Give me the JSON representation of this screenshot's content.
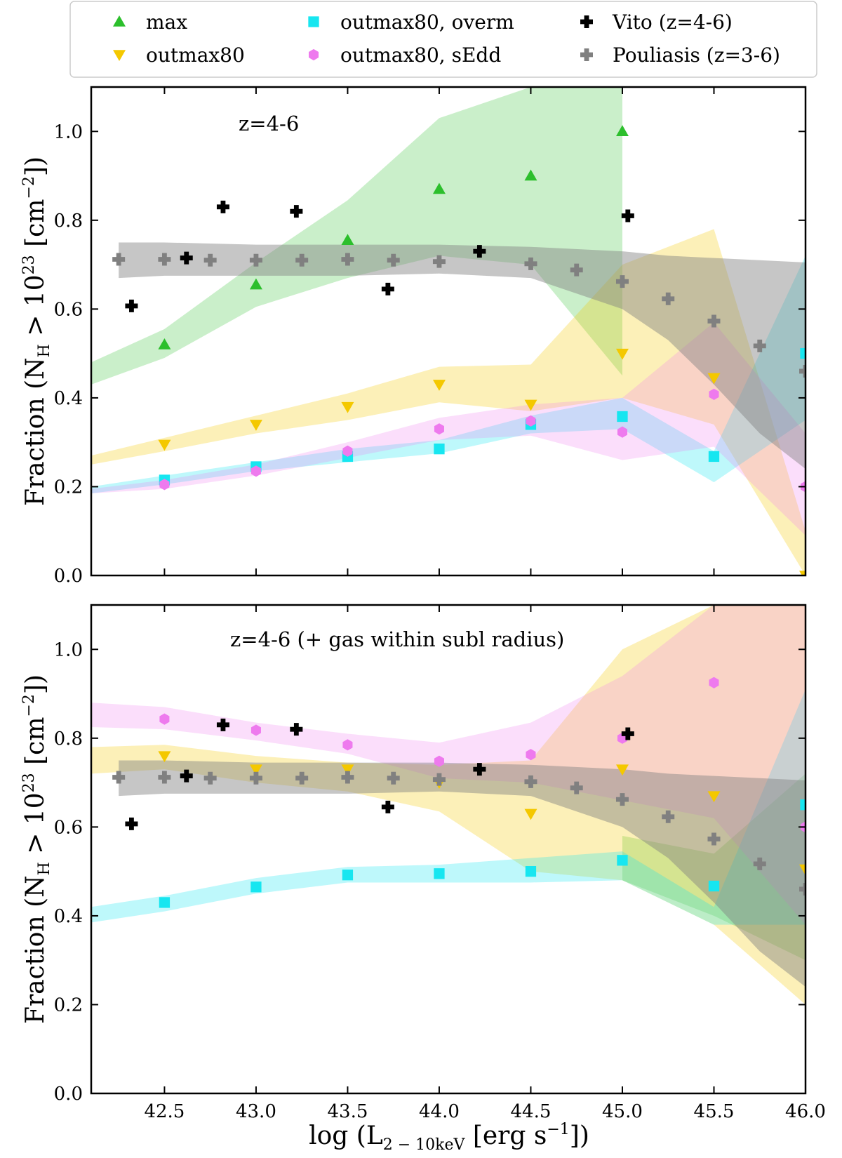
{
  "figure": {
    "xlabel": "log (L",
    "xlabel_sub": "2 − 10keV",
    "xlabel_units": " [erg s",
    "xlabel_sup": "−1",
    "xlabel_close": "])",
    "ylabel_prefix": "Fraction (N",
    "ylabel_sub": "H",
    "ylabel_mid": " > 10",
    "ylabel_sup": "23",
    "ylabel_units": " [cm",
    "ylabel_sup2": "−2",
    "ylabel_close": "])"
  },
  "legend": [
    {
      "key": "max",
      "label": "max",
      "marker": "triangle-up",
      "color": "#2cbf2c"
    },
    {
      "key": "outmax80",
      "label": "outmax80",
      "marker": "triangle-down",
      "color": "#f4c800"
    },
    {
      "key": "overm",
      "label": "outmax80, overm",
      "marker": "square",
      "color": "#17e6f0"
    },
    {
      "key": "sedd",
      "label": "outmax80, sEdd",
      "marker": "hexagon",
      "color": "#ee7aee"
    },
    {
      "key": "vito",
      "label": "Vito (z=4-6)",
      "marker": "plus",
      "color": "#000000"
    },
    {
      "key": "pouliasis",
      "label": "Pouliasis (z=3-6)",
      "marker": "plus",
      "color": "#808080"
    }
  ],
  "chart_data": [
    {
      "type": "scatter",
      "panel": "top",
      "annotation": "z=4-6",
      "xlim": [
        42.1,
        46.0
      ],
      "ylim": [
        0.0,
        1.1
      ],
      "xticks": [
        "42.5",
        "43.0",
        "43.5",
        "44.0",
        "44.5",
        "45.0",
        "45.5",
        "46.0"
      ],
      "yticks": [
        "0.0",
        "0.2",
        "0.4",
        "0.6",
        "0.8",
        "1.0"
      ],
      "bands": [
        {
          "series": "max",
          "color": "#2cbf2c",
          "opacity": 0.25,
          "x": [
            42.1,
            42.5,
            43.0,
            43.5,
            44.0,
            44.5,
            45.0
          ],
          "upper": [
            0.48,
            0.555,
            0.705,
            0.845,
            1.03,
            1.1,
            1.1
          ],
          "lower": [
            0.43,
            0.49,
            0.605,
            0.67,
            0.72,
            0.7,
            0.45
          ]
        },
        {
          "series": "outmax80",
          "color": "#f4c800",
          "opacity": 0.28,
          "x": [
            42.1,
            42.5,
            43.0,
            43.5,
            44.0,
            44.5,
            45.0,
            45.5,
            46.0
          ],
          "upper": [
            0.27,
            0.31,
            0.36,
            0.41,
            0.47,
            0.475,
            0.7,
            0.78,
            0.1
          ],
          "lower": [
            0.25,
            0.28,
            0.32,
            0.35,
            0.39,
            0.37,
            0.4,
            0.34,
            0.0
          ]
        },
        {
          "series": "overm",
          "color": "#17e6f0",
          "opacity": 0.28,
          "x": [
            42.1,
            42.5,
            43.0,
            43.5,
            44.0,
            44.5,
            45.0,
            45.5,
            46.0
          ],
          "upper": [
            0.2,
            0.225,
            0.255,
            0.285,
            0.305,
            0.36,
            0.4,
            0.28,
            0.72
          ],
          "lower": [
            0.185,
            0.205,
            0.235,
            0.255,
            0.275,
            0.32,
            0.33,
            0.21,
            0.35
          ]
        },
        {
          "series": "sedd",
          "color": "#ee7aee",
          "opacity": 0.25,
          "x": [
            42.1,
            42.5,
            43.0,
            43.5,
            44.0,
            44.5,
            45.0,
            45.5,
            46.0
          ],
          "upper": [
            0.195,
            0.215,
            0.25,
            0.3,
            0.355,
            0.385,
            0.4,
            0.57,
            0.32
          ],
          "lower": [
            0.185,
            0.195,
            0.225,
            0.265,
            0.305,
            0.315,
            0.26,
            0.29,
            0.09
          ]
        },
        {
          "series": "pouliasis",
          "color": "#808080",
          "opacity": 0.45,
          "x": [
            42.25,
            42.5,
            43.0,
            43.5,
            44.0,
            44.5,
            45.0,
            45.25,
            45.5,
            45.75,
            46.0
          ],
          "upper": [
            0.75,
            0.75,
            0.745,
            0.745,
            0.745,
            0.74,
            0.73,
            0.72,
            0.715,
            0.71,
            0.705
          ],
          "lower": [
            0.67,
            0.675,
            0.675,
            0.675,
            0.68,
            0.67,
            0.6,
            0.53,
            0.43,
            0.32,
            0.24
          ]
        }
      ],
      "series": [
        {
          "key": "max",
          "x": [
            42.5,
            43.0,
            43.5,
            44.0,
            44.5,
            45.0
          ],
          "y": [
            0.52,
            0.655,
            0.755,
            0.87,
            0.9,
            1.0
          ]
        },
        {
          "key": "outmax80",
          "x": [
            42.5,
            43.0,
            43.5,
            44.0,
            44.5,
            45.0,
            45.5,
            46.0
          ],
          "y": [
            0.295,
            0.34,
            0.38,
            0.43,
            0.385,
            0.5,
            0.445,
            0.0
          ]
        },
        {
          "key": "overm",
          "x": [
            42.5,
            43.0,
            43.5,
            44.0,
            44.5,
            45.0,
            45.5,
            46.0
          ],
          "y": [
            0.215,
            0.245,
            0.268,
            0.285,
            0.34,
            0.358,
            0.268,
            0.5
          ]
        },
        {
          "key": "sedd",
          "x": [
            42.5,
            43.0,
            43.5,
            44.0,
            44.5,
            45.0,
            45.5,
            46.0
          ],
          "y": [
            0.205,
            0.235,
            0.28,
            0.33,
            0.348,
            0.323,
            0.408,
            0.2
          ]
        },
        {
          "key": "vito",
          "x": [
            42.32,
            42.62,
            42.82,
            43.22,
            43.72,
            44.22,
            45.03
          ],
          "y": [
            0.607,
            0.715,
            0.83,
            0.82,
            0.645,
            0.73,
            0.81
          ]
        },
        {
          "key": "pouliasis",
          "x": [
            42.25,
            42.5,
            42.75,
            43.0,
            43.25,
            43.5,
            43.75,
            44.0,
            44.5,
            44.75,
            45.0,
            45.25,
            45.5,
            45.75,
            46.0
          ],
          "y": [
            0.712,
            0.712,
            0.71,
            0.71,
            0.71,
            0.712,
            0.71,
            0.707,
            0.702,
            0.688,
            0.662,
            0.623,
            0.573,
            0.517,
            0.46
          ]
        }
      ]
    },
    {
      "type": "scatter",
      "panel": "bottom",
      "annotation": "z=4-6 (+ gas within subl radius)",
      "xlim": [
        42.1,
        46.0
      ],
      "ylim": [
        0.0,
        1.1
      ],
      "xticks": [
        "42.5",
        "43.0",
        "43.5",
        "44.0",
        "44.5",
        "45.0",
        "45.5",
        "46.0"
      ],
      "yticks": [
        "0.0",
        "0.2",
        "0.4",
        "0.6",
        "0.8",
        "1.0"
      ],
      "bands": [
        {
          "series": "max",
          "color": "#2cbf2c",
          "opacity": 0.25,
          "x": [
            45.0,
            45.5,
            46.0
          ],
          "upper": [
            0.58,
            0.54,
            0.72
          ],
          "lower": [
            0.48,
            0.4,
            0.3
          ]
        },
        {
          "series": "outmax80",
          "color": "#f4c800",
          "opacity": 0.28,
          "x": [
            42.1,
            42.5,
            43.0,
            43.5,
            44.0,
            44.5,
            45.0,
            45.5,
            46.0
          ],
          "upper": [
            0.78,
            0.785,
            0.76,
            0.745,
            0.74,
            0.75,
            1.0,
            1.1,
            1.1
          ],
          "lower": [
            0.72,
            0.73,
            0.7,
            0.68,
            0.635,
            0.5,
            0.48,
            0.38,
            0.2
          ]
        },
        {
          "series": "overm",
          "color": "#17e6f0",
          "opacity": 0.28,
          "x": [
            42.1,
            42.5,
            43.0,
            43.5,
            44.0,
            44.5,
            45.0,
            45.5,
            46.0
          ],
          "upper": [
            0.42,
            0.445,
            0.485,
            0.51,
            0.515,
            0.53,
            0.545,
            0.42,
            0.91
          ],
          "lower": [
            0.385,
            0.41,
            0.45,
            0.475,
            0.475,
            0.475,
            0.48,
            0.38,
            0.38
          ]
        },
        {
          "series": "sedd",
          "color": "#ee7aee",
          "opacity": 0.25,
          "x": [
            42.1,
            42.5,
            43.0,
            43.5,
            44.0,
            44.5,
            45.0,
            45.5,
            46.0
          ],
          "upper": [
            0.88,
            0.87,
            0.835,
            0.81,
            0.79,
            0.835,
            0.94,
            1.1,
            1.1
          ],
          "lower": [
            0.825,
            0.82,
            0.795,
            0.765,
            0.71,
            0.7,
            0.66,
            0.62,
            0.38
          ]
        },
        {
          "series": "pouliasis",
          "color": "#808080",
          "opacity": 0.45,
          "x": [
            42.25,
            42.5,
            43.0,
            43.5,
            44.0,
            44.5,
            45.0,
            45.25,
            45.5,
            45.75,
            46.0
          ],
          "upper": [
            0.75,
            0.75,
            0.745,
            0.745,
            0.745,
            0.74,
            0.73,
            0.72,
            0.715,
            0.71,
            0.705
          ],
          "lower": [
            0.67,
            0.675,
            0.675,
            0.675,
            0.68,
            0.67,
            0.6,
            0.53,
            0.43,
            0.32,
            0.24
          ]
        }
      ],
      "series": [
        {
          "key": "outmax80",
          "x": [
            42.5,
            43.0,
            43.5,
            44.0,
            44.5,
            45.0,
            45.5,
            46.0
          ],
          "y": [
            0.76,
            0.73,
            0.73,
            0.7,
            0.63,
            0.73,
            0.67,
            0.505
          ]
        },
        {
          "key": "overm",
          "x": [
            42.5,
            43.0,
            43.5,
            44.0,
            44.5,
            45.0,
            45.5,
            46.0
          ],
          "y": [
            0.43,
            0.465,
            0.492,
            0.495,
            0.5,
            0.525,
            0.467,
            0.65
          ]
        },
        {
          "key": "sedd",
          "x": [
            42.5,
            43.0,
            43.5,
            44.0,
            44.5,
            45.0,
            45.5,
            46.0
          ],
          "y": [
            0.843,
            0.818,
            0.785,
            0.748,
            0.763,
            0.8,
            0.925,
            0.6
          ]
        },
        {
          "key": "vito",
          "x": [
            42.32,
            42.62,
            42.82,
            43.22,
            43.72,
            44.22,
            45.03
          ],
          "y": [
            0.607,
            0.715,
            0.83,
            0.82,
            0.645,
            0.73,
            0.81
          ]
        },
        {
          "key": "pouliasis",
          "x": [
            42.25,
            42.5,
            42.75,
            43.0,
            43.25,
            43.5,
            43.75,
            44.0,
            44.5,
            44.75,
            45.0,
            45.25,
            45.5,
            45.75,
            46.0
          ],
          "y": [
            0.712,
            0.712,
            0.71,
            0.71,
            0.71,
            0.712,
            0.71,
            0.707,
            0.702,
            0.688,
            0.662,
            0.623,
            0.573,
            0.517,
            0.46
          ]
        }
      ]
    }
  ]
}
